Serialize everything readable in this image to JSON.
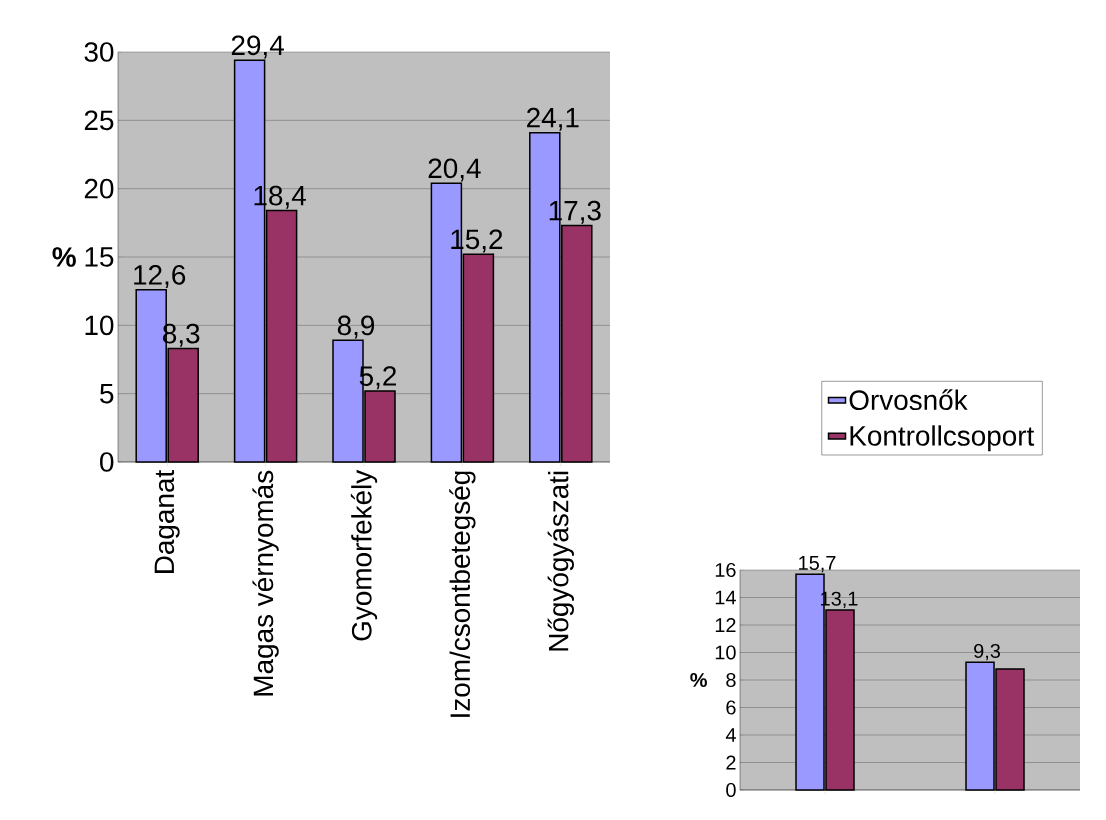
{
  "chart_data": [
    {
      "type": "bar",
      "ylabel": "%",
      "categories": [
        "Daganat",
        "Magas vérnyomás",
        "Gyomorfekély",
        "Izom/csontbetegség",
        "Nőgyógyászati"
      ],
      "series": [
        {
          "name": "Orvosnők",
          "color": "#9999ff",
          "values": [
            12.6,
            29.4,
            8.9,
            20.4,
            24.1
          ],
          "value_labels": [
            "12,6",
            "29,4",
            "8,9",
            "20,4",
            "24,1"
          ]
        },
        {
          "name": "Kontrollcsoport",
          "color": "#993366",
          "values": [
            8.3,
            18.4,
            5.2,
            15.2,
            17.3
          ],
          "value_labels": [
            "8,3",
            "18,4",
            "5,2",
            "15,2",
            "17,3"
          ]
        }
      ],
      "ylim": [
        0,
        30
      ],
      "yticks": [
        0,
        5,
        10,
        15,
        20,
        25,
        30
      ],
      "grid": "y",
      "legend": "right"
    },
    {
      "type": "bar",
      "ylabel": "%",
      "categories": [
        null,
        null
      ],
      "series": [
        {
          "color": "#9999ff",
          "values": [
            15.7,
            9.3
          ],
          "value_labels": [
            "15,7",
            "9,3"
          ]
        },
        {
          "color": "#993366",
          "values": [
            13.1,
            8.8
          ],
          "value_labels": [
            "13,1",
            null
          ]
        }
      ],
      "ylim": [
        0,
        16
      ],
      "yticks": [
        0,
        2,
        4,
        6,
        8,
        10,
        12,
        14,
        16
      ],
      "grid": "y"
    }
  ]
}
